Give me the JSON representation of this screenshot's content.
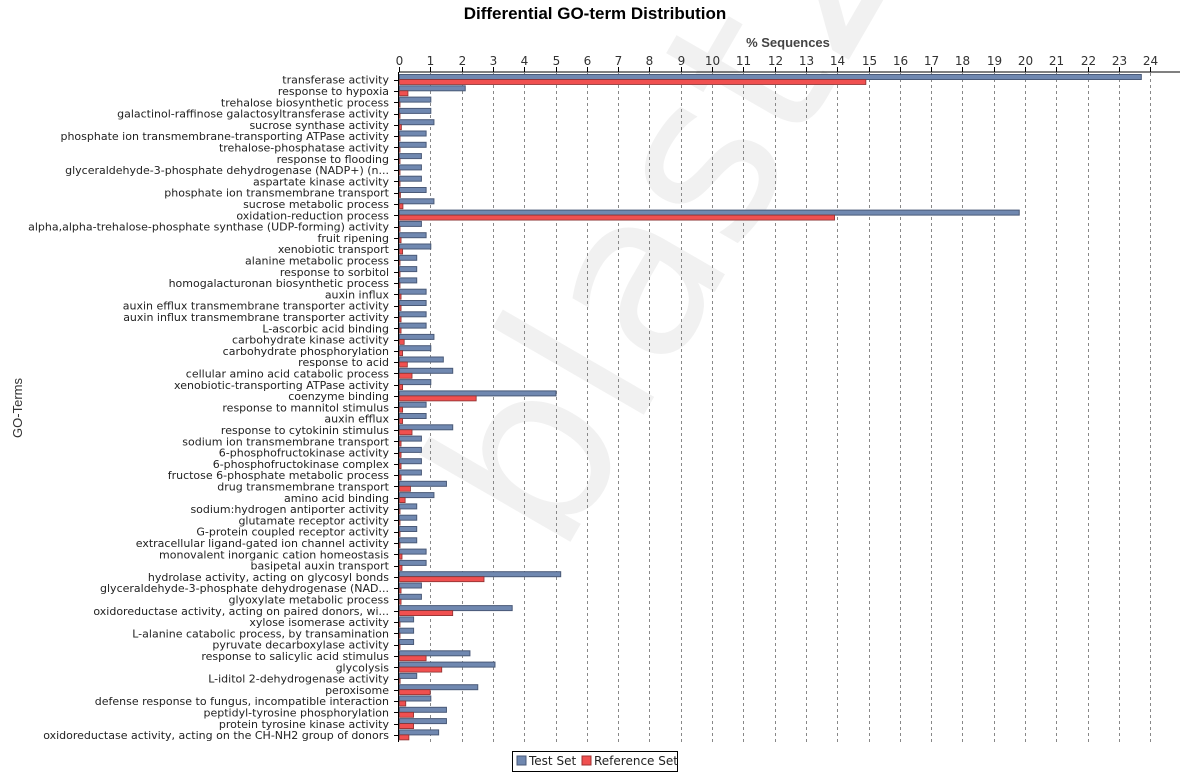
{
  "chart_data": {
    "type": "bar",
    "orientation": "horizontal",
    "title": "Differential GO-term Distribution",
    "xlabel": "% Sequences",
    "ylabel": "GO-Terms",
    "xlim": [
      0,
      24.5
    ],
    "xticks": [
      0,
      1,
      2,
      3,
      4,
      5,
      6,
      7,
      8,
      9,
      10,
      11,
      12,
      13,
      14,
      15,
      16,
      17,
      18,
      19,
      20,
      21,
      22,
      23,
      24
    ],
    "grid": true,
    "legend_position": "bottom-center",
    "colors": {
      "test": "#7088b0",
      "reference": "#f05050",
      "bar_edge": "#4a5a78"
    },
    "categories": [
      "transferase activity",
      "response to hypoxia",
      "trehalose biosynthetic process",
      "galactinol-raffinose galactosyltransferase activity",
      "sucrose synthase activity",
      "phosphate ion transmembrane-transporting ATPase activity",
      "trehalose-phosphatase activity",
      "response to flooding",
      "glyceraldehyde-3-phosphate dehydrogenase (NADP+) (n...",
      "aspartate kinase activity",
      "phosphate ion transmembrane transport",
      "sucrose metabolic process",
      "oxidation-reduction process",
      "alpha,alpha-trehalose-phosphate synthase (UDP-forming) activity",
      "fruit ripening",
      "xenobiotic transport",
      "alanine metabolic process",
      "response to sorbitol",
      "homogalacturonan biosynthetic process",
      "auxin influx",
      "auxin efflux transmembrane transporter activity",
      "auxin influx transmembrane transporter activity",
      "L-ascorbic acid binding",
      "carbohydrate kinase activity",
      "carbohydrate phosphorylation",
      "response to acid",
      "cellular amino acid catabolic process",
      "xenobiotic-transporting ATPase activity",
      "coenzyme binding",
      "response to mannitol stimulus",
      "auxin efflux",
      "response to cytokinin stimulus",
      "sodium ion transmembrane transport",
      "6-phosphofructokinase activity",
      "6-phosphofructokinase complex",
      "fructose 6-phosphate metabolic process",
      "drug transmembrane transport",
      "amino acid binding",
      "sodium:hydrogen antiporter activity",
      "glutamate receptor activity",
      "G-protein coupled receptor activity",
      "extracellular ligand-gated ion channel activity",
      "monovalent inorganic cation homeostasis",
      "basipetal auxin transport",
      "hydrolase activity, acting on glycosyl bonds",
      "glyceraldehyde-3-phosphate dehydrogenase (NAD...",
      "glyoxylate metabolic process",
      "oxidoreductase activity, acting on paired donors, wi...",
      "xylose isomerase activity",
      "L-alanine catabolic process, by transamination",
      "pyruvate decarboxylase activity",
      "response to salicylic acid stimulus",
      "glycolysis",
      "L-iditol 2-dehydrogenase activity",
      "peroxisome",
      "defense response to fungus, incompatible interaction",
      "peptidyl-tyrosine phosphorylation",
      "protein tyrosine kinase activity",
      "oxidoreductase activity, acting on the CH-NH2 group of donors"
    ],
    "series": [
      {
        "name": "Test Set",
        "values": [
          23.7,
          2.1,
          1.0,
          1.0,
          1.1,
          0.85,
          0.85,
          0.7,
          0.7,
          0.7,
          0.85,
          1.1,
          19.8,
          0.7,
          0.85,
          1.0,
          0.55,
          0.55,
          0.55,
          0.85,
          0.85,
          0.85,
          0.85,
          1.1,
          1.0,
          1.4,
          1.7,
          1.0,
          5.0,
          0.85,
          0.85,
          1.7,
          0.7,
          0.7,
          0.7,
          0.7,
          1.5,
          1.1,
          0.55,
          0.55,
          0.55,
          0.55,
          0.85,
          0.85,
          5.15,
          0.7,
          0.7,
          3.6,
          0.45,
          0.45,
          0.45,
          2.25,
          3.05,
          0.55,
          2.5,
          1.0,
          1.5,
          1.5,
          1.25
        ]
      },
      {
        "name": "Reference Set",
        "values": [
          14.9,
          0.27,
          0.01,
          0.01,
          0.06,
          0.01,
          0.01,
          0.01,
          0.01,
          0.01,
          0.03,
          0.11,
          13.9,
          0.01,
          0.05,
          0.1,
          0.01,
          0.01,
          0.01,
          0.05,
          0.05,
          0.05,
          0.05,
          0.15,
          0.1,
          0.25,
          0.4,
          0.1,
          2.45,
          0.1,
          0.1,
          0.4,
          0.05,
          0.05,
          0.05,
          0.05,
          0.35,
          0.18,
          0.01,
          0.01,
          0.01,
          0.01,
          0.08,
          0.08,
          2.7,
          0.05,
          0.05,
          1.7,
          0.01,
          0.01,
          0.01,
          0.85,
          1.35,
          0.02,
          0.98,
          0.2,
          0.45,
          0.45,
          0.3
        ]
      }
    ]
  },
  "legend": {
    "items": [
      {
        "label": "Test Set",
        "color": "#7088b0"
      },
      {
        "label": "Reference Set",
        "color": "#f05050"
      }
    ]
  },
  "watermark": "blast2go"
}
